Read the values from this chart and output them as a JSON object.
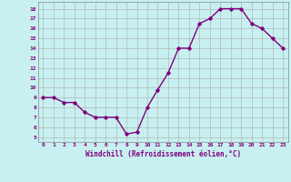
{
  "x": [
    0,
    1,
    2,
    3,
    4,
    5,
    6,
    7,
    8,
    9,
    10,
    11,
    12,
    13,
    14,
    15,
    16,
    17,
    18,
    19,
    20,
    21,
    22,
    23
  ],
  "y": [
    9.0,
    9.0,
    8.5,
    8.5,
    7.5,
    7.0,
    7.0,
    7.0,
    5.3,
    5.5,
    8.0,
    9.8,
    11.5,
    14.0,
    14.0,
    16.5,
    17.0,
    18.0,
    18.0,
    18.0,
    16.5,
    16.0,
    15.0,
    14.0
  ],
  "yticks": [
    5,
    6,
    7,
    8,
    9,
    10,
    11,
    12,
    13,
    14,
    15,
    16,
    17,
    18
  ],
  "xticks": [
    0,
    1,
    2,
    3,
    4,
    5,
    6,
    7,
    8,
    9,
    10,
    11,
    12,
    13,
    14,
    15,
    16,
    17,
    18,
    19,
    20,
    21,
    22,
    23
  ],
  "xlabel": "Windchill (Refroidissement éolien,°C)",
  "line_color": "#800080",
  "marker": "D",
  "marker_size": 1.8,
  "bg_color": "#c8f0f0",
  "grid_color": "#aaaaaa",
  "fig_bg": "#c8f0f0",
  "linewidth": 1.0
}
